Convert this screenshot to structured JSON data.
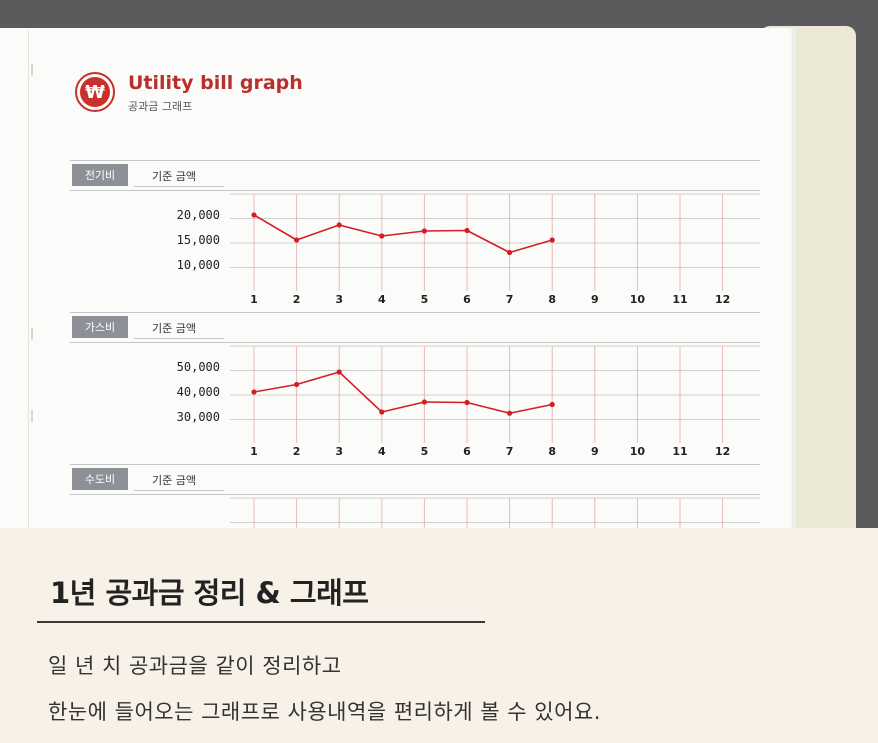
{
  "header": {
    "logo_symbol": "₩",
    "title": "Utility bill graph",
    "subtitle": "공과금 그래프"
  },
  "sections": [
    {
      "tag": "전기비",
      "label": "기준 금액"
    },
    {
      "tag": "가스비",
      "label": "기준 금액"
    },
    {
      "tag": "수도비",
      "label": "기준 금액"
    }
  ],
  "months": [
    "1",
    "2",
    "3",
    "4",
    "5",
    "6",
    "7",
    "8",
    "9",
    "10",
    "11",
    "12"
  ],
  "chart_data": [
    {
      "type": "line",
      "x": [
        1,
        2,
        3,
        4,
        5,
        6,
        7,
        8
      ],
      "y_tick_labels": [
        "20,000",
        "15,000",
        "10,000"
      ],
      "ylim": [
        10000,
        20000
      ],
      "values": [
        20000,
        15000,
        18000,
        15800,
        16800,
        16900,
        12500,
        15000
      ],
      "line_color": "#d21f26"
    },
    {
      "type": "line",
      "x": [
        1,
        2,
        3,
        4,
        5,
        6,
        7,
        8
      ],
      "y_tick_labels": [
        "50,000",
        "40,000",
        "30,000"
      ],
      "ylim": [
        30000,
        50000
      ],
      "values": [
        40000,
        43000,
        48000,
        32000,
        36000,
        35800,
        31500,
        35000
      ],
      "line_color": "#d21f26"
    }
  ],
  "banner": {
    "heading": "1년 공과금 정리 & 그래프",
    "line1": "일 년 치 공과금을 같이 정리하고",
    "line2": "한눈에 들어오는 그래프로 사용내역을 편리하게 볼 수 있어요."
  },
  "colors": {
    "accent": "#c9302c",
    "tag_bg": "#8d9096",
    "banner_bg": "#f8f1e8"
  }
}
